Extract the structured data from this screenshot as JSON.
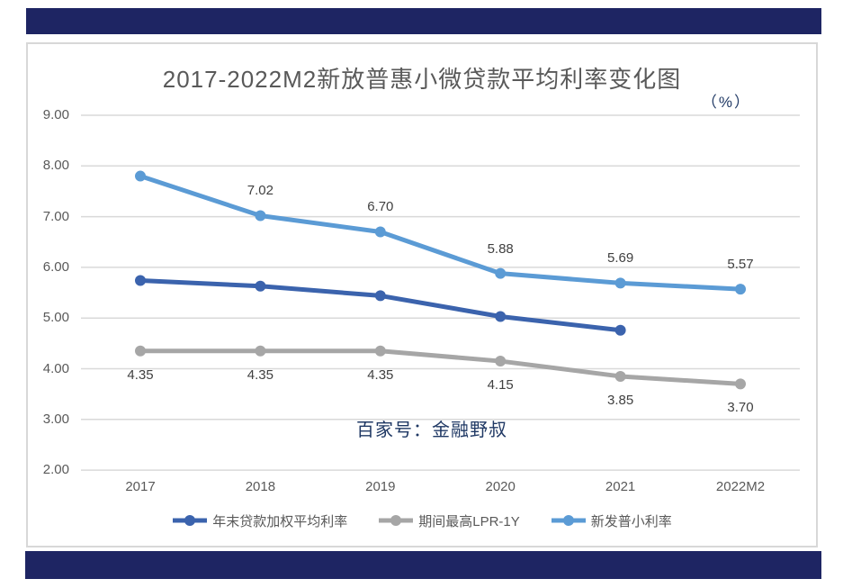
{
  "page": {
    "accent_color": "#1E2563",
    "watermark": "百家号：金融野叔"
  },
  "chart": {
    "title": "2017-2022M2新放普惠小微贷款平均利率变化图",
    "unit_label": "（%）"
  },
  "chart_data": {
    "type": "line",
    "title": "2017-2022M2新放普惠小微贷款平均利率变化图",
    "unit": "%",
    "categories": [
      "2017",
      "2018",
      "2019",
      "2020",
      "2021",
      "2022M2"
    ],
    "y_ticks": [
      "9.00",
      "8.00",
      "7.00",
      "6.00",
      "5.00",
      "4.00",
      "3.00",
      "2.00"
    ],
    "ylim": [
      2.0,
      9.0
    ],
    "grid": true,
    "legend_position": "bottom",
    "series": [
      {
        "name": "年末贷款加权平均利率",
        "color": "#3B63AD",
        "values": [
          5.74,
          5.63,
          5.44,
          5.03,
          4.76,
          null
        ],
        "labels": [
          "",
          "",
          "",
          "",
          "",
          ""
        ],
        "label_position": "none"
      },
      {
        "name": "期间最高LPR-1Y",
        "color": "#A6A6A6",
        "values": [
          4.35,
          4.35,
          4.35,
          4.15,
          3.85,
          3.7
        ],
        "labels": [
          "4.35",
          "4.35",
          "4.35",
          "4.15",
          "3.85",
          "3.70"
        ],
        "label_position": "below"
      },
      {
        "name": "新发普小利率",
        "color": "#5B9BD5",
        "values": [
          7.8,
          7.02,
          6.7,
          5.88,
          5.69,
          5.57
        ],
        "labels": [
          "",
          "7.02",
          "6.70",
          "5.88",
          "5.69",
          "5.57"
        ],
        "label_position": "above"
      }
    ]
  }
}
